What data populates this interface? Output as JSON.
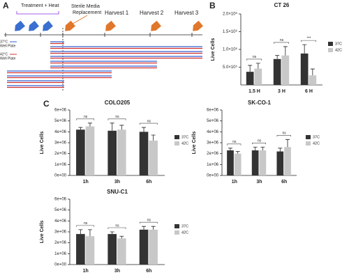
{
  "panels": {
    "a": "A",
    "b": "B",
    "c": "C"
  },
  "diagram": {
    "treatment": "Treatment + Heat",
    "media_1": "Sterile Media",
    "media_2": "Replacement",
    "harvest_1": "Harvest 1",
    "harvest_2": "Harvest 2",
    "harvest_3": "Harvest 3",
    "label_37": "37°C",
    "label_37_sub": "Well Plate",
    "label_42": "42°C",
    "label_42_sub": "Well Plate"
  },
  "chart_data": [
    {
      "type": "bar",
      "title": "CT 26",
      "y_label": "Live Cells",
      "categories": [
        "1.5 H",
        "3 H",
        "6 H"
      ],
      "series": [
        {
          "name": "37C",
          "color": "#333333",
          "values": [
            370000,
            730000,
            885000
          ],
          "errors": [
            180000,
            100000,
            250000
          ]
        },
        {
          "name": "42C",
          "color": "#c8c8c8",
          "values": [
            460000,
            830000,
            270000
          ],
          "errors": [
            150000,
            250000,
            180000
          ]
        }
      ],
      "ylim": [
        0,
        2000000
      ],
      "yticks": [
        {
          "value": 500000,
          "label": "5.0×10⁵"
        },
        {
          "value": 1000000,
          "label": "1.0×10⁶"
        },
        {
          "value": 1500000,
          "label": "1.5×10⁶"
        },
        {
          "value": 2000000,
          "label": "2.0×10⁶"
        }
      ],
      "annotations": [
        "ns",
        "ns",
        "***"
      ],
      "legend": "right"
    },
    {
      "type": "bar",
      "title": "COLO205",
      "y_label": "Live Cells",
      "categories": [
        "1h",
        "3h",
        "6h"
      ],
      "series": [
        {
          "name": "37C",
          "color": "#333333",
          "values": [
            4200000,
            4100000,
            4000000
          ],
          "errors": [
            200000,
            700000,
            400000
          ]
        },
        {
          "name": "42C",
          "color": "#c8c8c8",
          "values": [
            4500000,
            4200000,
            3200000
          ],
          "errors": [
            300000,
            400000,
            500000
          ]
        }
      ],
      "ylim": [
        0,
        6000000
      ],
      "yticks": [
        {
          "value": 0,
          "label": "0e+00"
        },
        {
          "value": 1000000,
          "label": "1e+06"
        },
        {
          "value": 2000000,
          "label": "2e+06"
        },
        {
          "value": 3000000,
          "label": "3e+06"
        },
        {
          "value": 4000000,
          "label": "4e+06"
        },
        {
          "value": 5000000,
          "label": "5e+06"
        },
        {
          "value": 6000000,
          "label": "6e+06"
        }
      ],
      "annotations": [
        "ns",
        "ns",
        "ns"
      ],
      "legend": "right"
    },
    {
      "type": "bar",
      "title": "SK-CO-1",
      "y_label": "Live Cells",
      "categories": [
        "1h",
        "3h",
        "6h"
      ],
      "series": [
        {
          "name": "37C",
          "color": "#333333",
          "values": [
            2300000,
            2300000,
            2200000
          ],
          "errors": [
            200000,
            300000,
            300000
          ]
        },
        {
          "name": "42C",
          "color": "#c8c8c8",
          "values": [
            2000000,
            2300000,
            2600000
          ],
          "errors": [
            200000,
            300000,
            700000
          ]
        }
      ],
      "ylim": [
        0,
        6000000
      ],
      "yticks": [
        {
          "value": 0,
          "label": "0e+00"
        },
        {
          "value": 1000000,
          "label": "1e+06"
        },
        {
          "value": 2000000,
          "label": "2e+06"
        },
        {
          "value": 3000000,
          "label": "3e+06"
        },
        {
          "value": 4000000,
          "label": "4e+06"
        },
        {
          "value": 5000000,
          "label": "5e+06"
        },
        {
          "value": 6000000,
          "label": "6e+06"
        }
      ],
      "annotations": [
        "ns",
        "ns",
        "ns"
      ],
      "legend": "right"
    },
    {
      "type": "bar",
      "title": "SNU-C1",
      "y_label": "Live Cells",
      "categories": [
        "1h",
        "3h",
        "6h"
      ],
      "series": [
        {
          "name": "37C",
          "color": "#333333",
          "values": [
            2800000,
            2800000,
            3200000
          ],
          "errors": [
            400000,
            200000,
            300000
          ]
        },
        {
          "name": "42C",
          "color": "#c8c8c8",
          "values": [
            2600000,
            2400000,
            3200000
          ],
          "errors": [
            600000,
            200000,
            300000
          ]
        }
      ],
      "ylim": [
        0,
        6000000
      ],
      "yticks": [
        {
          "value": 0,
          "label": "0e+00"
        },
        {
          "value": 1000000,
          "label": "1e+06"
        },
        {
          "value": 2000000,
          "label": "2e+06"
        },
        {
          "value": 3000000,
          "label": "3e+06"
        },
        {
          "value": 4000000,
          "label": "4e+06"
        },
        {
          "value": 5000000,
          "label": "5e+06"
        },
        {
          "value": 6000000,
          "label": "6e+06"
        }
      ],
      "annotations": [
        "ns",
        "ns",
        "ns"
      ],
      "legend": "right"
    }
  ]
}
